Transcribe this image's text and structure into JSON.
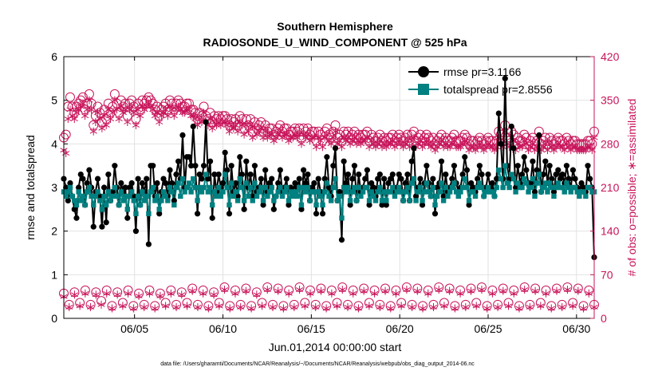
{
  "chart_data": {
    "type": "line",
    "title": "Southern Hemisphere",
    "subtitle": "RADIOSONDE_U_WIND_COMPONENT @ 525 hPa",
    "xlabel": "Jun.01,2014 00:00:00 start",
    "ylabel_left": "rmse and totalspread",
    "ylabel_right": "# of obs: o=possible; ∗=assimilated",
    "footer": "data file: /Users/gharamti/Documents/NCAR/Reanalysis/~/Documents/NCAR/Reanalysis/webpub/obs_diag_output_2014-06.nc",
    "xlim": [
      1,
      31
    ],
    "x_ticks": [
      5,
      10,
      15,
      20,
      25,
      30
    ],
    "x_tick_labels": [
      "06/05",
      "06/10",
      "06/15",
      "06/20",
      "06/25",
      "06/30"
    ],
    "ylim_left": [
      0,
      6
    ],
    "y_ticks_left": [
      "0",
      "1",
      "2",
      "3",
      "4",
      "5",
      "6"
    ],
    "ylim_right": [
      0,
      420
    ],
    "y_ticks_right": [
      "0",
      "70",
      "140",
      "210",
      "280",
      "350",
      "420"
    ],
    "grid": true,
    "legend_position": "top-right",
    "colors": {
      "rmse": "#000000",
      "totalspread": "#008080",
      "obs": "#c8145a"
    },
    "series": [
      {
        "name": "rmse pr=3.1166",
        "values": [
          3.2,
          3.0,
          2.7,
          3.1,
          2.8,
          2.5,
          2.3,
          3.0,
          3.3,
          3.2,
          2.6,
          3.1,
          3.4,
          3.0,
          2.1,
          2.9,
          3.2,
          2.8,
          2.1,
          3.0,
          2.2,
          3.3,
          2.7,
          2.9,
          3.5,
          3.0,
          2.6,
          3.1,
          2.9,
          3.0,
          2.3,
          3.0,
          3.1,
          2.8,
          2.0,
          3.2,
          2.6,
          3.1,
          2.9,
          3.2,
          1.7,
          3.5,
          3.5,
          2.8,
          3.1,
          2.4,
          2.9,
          3.2,
          3.1,
          2.8,
          3.4,
          3.1,
          2.7,
          3.3,
          3.6,
          3.2,
          4.2,
          3.0,
          3.7,
          3.7,
          3.5,
          4.4,
          3.5,
          2.4,
          3.3,
          3.2,
          3.5,
          4.5,
          3.2,
          3.6,
          2.3,
          3.3,
          2.9,
          3.3,
          3.0,
          3.1,
          3.8,
          3.4,
          2.4,
          3.5,
          2.9,
          3.1,
          2.8,
          3.7,
          3.3,
          2.5,
          3.6,
          3.0,
          3.3,
          2.8,
          3.5,
          2.9,
          3.0,
          3.2,
          2.6,
          3.4,
          2.9,
          3.1,
          3.2,
          2.5,
          2.8,
          3.1,
          3.4,
          2.9,
          3.0,
          3.2,
          2.6,
          3.0,
          2.9,
          3.1,
          3.0,
          3.2,
          2.5,
          3.4,
          3.1,
          3.3,
          2.7,
          3.0,
          3.1,
          2.4,
          3.2,
          2.9,
          2.4,
          3.2,
          3.7,
          3.0,
          2.8,
          3.5,
          3.9,
          2.7,
          2.9,
          1.8,
          3.6,
          3.1,
          3.3,
          2.6,
          3.2,
          3.5,
          2.7,
          3.3,
          2.9,
          3.0,
          3.2,
          3.4,
          2.6,
          3.1,
          3.0,
          2.8,
          3.2,
          3.3,
          2.6,
          3.2,
          2.6,
          3.1,
          3.2,
          3.3,
          2.9,
          3.0,
          3.3,
          3.2,
          2.7,
          3.1,
          3.3,
          2.7,
          3.6,
          3.9,
          2.8,
          3.0,
          3.2,
          2.6,
          3.1,
          3.5,
          3.1,
          2.8,
          3.2,
          2.4,
          3.0,
          3.1,
          3.6,
          2.8,
          3.3,
          2.9,
          3.0,
          3.2,
          3.5,
          3.1,
          2.9,
          3.0,
          3.3,
          3.7,
          3.4,
          2.6,
          3.1,
          3.0,
          2.9,
          3.2,
          3.5,
          3.3,
          2.8,
          3.0,
          3.3,
          3.0,
          3.1,
          2.8,
          3.2,
          4.7,
          4.0,
          3.2,
          5.5,
          3.5,
          3.2,
          4.4,
          3.9,
          3.0,
          3.5,
          3.1,
          3.3,
          3.7,
          3.4,
          3.1,
          3.1,
          3.6,
          2.9,
          3.4,
          4.2,
          2.9,
          3.3,
          3.6,
          3.1,
          3.5,
          3.2,
          2.9,
          3.3,
          3.4,
          3.2,
          3.3,
          3.1,
          3.5,
          3.2,
          3.0,
          3.4,
          3.2,
          3.0,
          2.9,
          3.1,
          3.0,
          2.9,
          3.5,
          3.2,
          3.0,
          1.4
        ]
      },
      {
        "name": "totalspread pr=2.8556",
        "values": [
          2.9,
          2.8,
          2.9,
          3.0,
          2.8,
          2.7,
          2.6,
          2.9,
          2.7,
          2.8,
          2.6,
          2.9,
          3.0,
          2.8,
          2.6,
          2.8,
          2.9,
          2.7,
          2.5,
          2.8,
          2.6,
          2.9,
          2.7,
          2.8,
          3.0,
          2.8,
          2.6,
          2.9,
          2.7,
          2.8,
          2.5,
          2.8,
          2.9,
          2.7,
          2.4,
          2.8,
          2.6,
          2.9,
          2.7,
          2.8,
          2.4,
          2.9,
          3.0,
          2.7,
          2.8,
          2.5,
          2.7,
          2.9,
          2.8,
          2.7,
          3.0,
          2.9,
          2.6,
          3.0,
          3.1,
          2.8,
          3.2,
          2.9,
          3.0,
          3.1,
          2.9,
          3.2,
          3.0,
          2.7,
          3.0,
          2.9,
          3.0,
          3.3,
          2.9,
          3.0,
          2.6,
          2.9,
          2.8,
          3.0,
          2.8,
          2.9,
          3.3,
          3.0,
          2.6,
          3.1,
          2.8,
          2.9,
          2.7,
          3.2,
          3.0,
          2.7,
          3.1,
          2.8,
          3.0,
          2.7,
          3.1,
          2.8,
          2.9,
          3.0,
          2.7,
          3.0,
          2.8,
          2.9,
          3.0,
          2.7,
          2.8,
          2.9,
          3.0,
          2.8,
          2.9,
          3.0,
          2.7,
          2.9,
          2.8,
          2.9,
          2.8,
          3.0,
          2.6,
          3.0,
          2.9,
          3.0,
          2.7,
          2.9,
          2.9,
          2.6,
          2.9,
          2.8,
          2.6,
          2.9,
          3.1,
          2.8,
          2.7,
          3.0,
          3.2,
          2.7,
          2.8,
          2.3,
          3.0,
          2.9,
          3.0,
          2.7,
          2.9,
          3.0,
          2.7,
          3.0,
          2.8,
          2.9,
          3.0,
          3.0,
          2.7,
          2.9,
          2.8,
          2.7,
          2.9,
          3.0,
          2.7,
          2.9,
          2.7,
          2.9,
          2.9,
          3.0,
          2.8,
          2.9,
          3.0,
          2.9,
          2.7,
          2.9,
          3.0,
          2.7,
          3.1,
          3.2,
          2.7,
          2.9,
          3.0,
          2.7,
          2.9,
          3.1,
          2.9,
          2.8,
          3.0,
          2.6,
          2.8,
          2.9,
          3.1,
          2.7,
          3.0,
          2.8,
          2.9,
          3.0,
          3.1,
          2.9,
          2.8,
          2.9,
          3.0,
          3.2,
          3.0,
          2.7,
          2.9,
          2.9,
          2.8,
          3.0,
          3.1,
          3.0,
          2.8,
          2.9,
          3.0,
          2.9,
          2.9,
          2.8,
          3.0,
          3.4,
          3.2,
          3.0,
          3.5,
          3.1,
          3.0,
          3.3,
          3.2,
          2.9,
          3.1,
          3.0,
          3.0,
          3.2,
          3.1,
          2.9,
          3.0,
          3.2,
          2.8,
          3.1,
          3.3,
          2.9,
          3.0,
          3.1,
          2.9,
          3.1,
          3.0,
          2.8,
          3.0,
          3.1,
          3.0,
          3.0,
          2.9,
          3.1,
          3.0,
          2.9,
          3.0,
          3.0,
          2.9,
          2.8,
          2.9,
          2.9,
          2.8,
          3.0,
          3.0,
          2.9,
          2.9
        ]
      }
    ],
    "obs_high": {
      "possible": [
        290,
        295,
        340,
        355,
        340,
        330,
        340,
        345,
        350,
        355,
        335,
        345,
        360,
        345,
        310,
        325,
        340,
        330,
        315,
        335,
        320,
        345,
        330,
        340,
        360,
        345,
        330,
        350,
        340,
        345,
        325,
        345,
        350,
        340,
        320,
        345,
        335,
        350,
        345,
        350,
        355,
        350,
        345,
        335,
        340,
        325,
        335,
        340,
        345,
        335,
        350,
        345,
        335,
        345,
        350,
        345,
        340,
        340,
        345,
        345,
        335,
        335,
        330,
        320,
        330,
        325,
        340,
        325,
        320,
        330,
        315,
        325,
        320,
        325,
        320,
        325,
        325,
        320,
        310,
        320,
        315,
        320,
        310,
        325,
        320,
        305,
        320,
        310,
        320,
        300,
        315,
        305,
        310,
        315,
        300,
        310,
        300,
        305,
        305,
        295,
        300,
        305,
        310,
        300,
        305,
        305,
        295,
        300,
        300,
        305,
        300,
        305,
        290,
        305,
        300,
        305,
        295,
        300,
        300,
        285,
        300,
        295,
        285,
        300,
        305,
        295,
        290,
        300,
        310,
        290,
        295,
        285,
        300,
        295,
        300,
        290,
        295,
        300,
        290,
        295,
        290,
        295,
        295,
        300,
        285,
        295,
        290,
        285,
        290,
        295,
        285,
        290,
        285,
        290,
        290,
        295,
        285,
        290,
        295,
        290,
        285,
        290,
        295,
        285,
        295,
        300,
        285,
        290,
        295,
        285,
        290,
        295,
        290,
        285,
        290,
        280,
        285,
        290,
        295,
        285,
        290,
        285,
        285,
        290,
        295,
        285,
        285,
        285,
        290,
        295,
        290,
        280,
        285,
        285,
        280,
        285,
        290,
        285,
        280,
        285,
        290,
        285,
        285,
        280,
        285,
        300,
        295,
        285,
        310,
        290,
        285,
        300,
        295,
        280,
        290,
        285,
        285,
        295,
        290,
        280,
        285,
        290,
        280,
        285,
        300,
        280,
        285,
        290,
        280,
        290,
        285,
        280,
        285,
        290,
        285,
        285,
        280,
        290,
        285,
        280,
        285,
        285,
        280,
        280,
        280,
        280,
        280,
        285,
        285,
        280,
        300
      ],
      "assimilated": [
        270,
        265,
        320,
        335,
        325,
        320,
        330,
        335,
        340,
        345,
        325,
        335,
        350,
        335,
        300,
        315,
        330,
        320,
        305,
        325,
        310,
        335,
        320,
        330,
        350,
        335,
        320,
        340,
        330,
        335,
        315,
        335,
        340,
        330,
        310,
        335,
        325,
        340,
        335,
        340,
        345,
        340,
        335,
        325,
        330,
        315,
        325,
        330,
        335,
        325,
        340,
        335,
        325,
        335,
        340,
        335,
        330,
        330,
        335,
        335,
        325,
        325,
        320,
        310,
        320,
        315,
        330,
        315,
        310,
        320,
        305,
        315,
        310,
        315,
        310,
        315,
        315,
        310,
        300,
        310,
        305,
        310,
        300,
        315,
        310,
        295,
        310,
        300,
        310,
        290,
        305,
        295,
        300,
        305,
        290,
        300,
        290,
        295,
        295,
        285,
        290,
        295,
        300,
        290,
        295,
        295,
        285,
        290,
        290,
        295,
        290,
        295,
        280,
        295,
        290,
        295,
        285,
        290,
        290,
        275,
        290,
        285,
        275,
        290,
        295,
        285,
        280,
        290,
        300,
        280,
        285,
        275,
        290,
        285,
        290,
        280,
        285,
        290,
        280,
        285,
        280,
        285,
        285,
        290,
        275,
        285,
        280,
        275,
        280,
        285,
        275,
        280,
        275,
        280,
        280,
        285,
        275,
        280,
        285,
        280,
        275,
        280,
        285,
        275,
        285,
        290,
        275,
        280,
        285,
        275,
        280,
        285,
        280,
        275,
        280,
        270,
        275,
        280,
        285,
        275,
        280,
        275,
        275,
        280,
        285,
        275,
        275,
        275,
        280,
        285,
        280,
        270,
        275,
        275,
        270,
        275,
        280,
        275,
        270,
        275,
        280,
        275,
        275,
        270,
        275,
        290,
        285,
        275,
        300,
        280,
        275,
        290,
        285,
        270,
        280,
        275,
        275,
        285,
        280,
        270,
        275,
        280,
        270,
        275,
        290,
        270,
        275,
        280,
        270,
        280,
        275,
        270,
        275,
        280,
        275,
        275,
        270,
        280,
        275,
        270,
        275,
        275,
        270,
        270,
        270,
        270,
        270,
        275,
        275,
        270,
        290
      ]
    },
    "obs_low": {
      "possible": [
        40,
        22,
        42,
        25,
        45,
        22,
        42,
        28,
        45,
        20,
        42,
        25,
        45,
        20,
        40,
        22,
        45,
        20,
        40,
        25,
        45,
        22,
        42,
        25,
        48,
        22,
        45,
        20,
        42,
        25,
        50,
        20,
        45,
        22,
        48,
        20,
        42,
        25,
        50,
        22,
        48,
        20,
        45,
        22,
        50,
        25,
        45,
        22,
        48,
        20,
        45,
        25,
        50,
        22,
        45,
        20,
        48,
        25,
        45,
        22,
        48,
        20,
        45,
        25,
        50,
        22,
        48,
        20,
        45,
        22,
        50,
        25,
        48,
        20,
        45,
        22,
        48,
        25,
        50,
        20,
        45,
        22,
        48,
        25,
        45,
        20,
        50,
        22,
        48,
        25,
        45,
        20,
        48,
        22,
        50,
        25,
        48,
        20,
        45,
        22
      ],
      "assimilated": [
        35,
        18,
        38,
        20,
        40,
        18,
        38,
        22,
        40,
        16,
        38,
        20,
        40,
        16,
        36,
        18,
        40,
        16,
        36,
        20,
        40,
        18,
        38,
        20,
        44,
        18,
        40,
        16,
        38,
        20,
        46,
        16,
        40,
        18,
        44,
        16,
        38,
        20,
        46,
        18,
        44,
        16,
        40,
        18,
        46,
        20,
        40,
        18,
        44,
        16,
        40,
        20,
        46,
        18,
        40,
        16,
        44,
        20,
        40,
        18,
        44,
        16,
        40,
        20,
        46,
        18,
        44,
        16,
        40,
        18,
        46,
        20,
        44,
        16,
        40,
        18,
        44,
        20,
        46,
        16,
        40,
        18,
        44,
        20,
        40,
        16,
        46,
        18,
        44,
        20,
        40,
        16,
        44,
        18,
        46,
        20,
        44,
        16,
        40,
        18
      ]
    }
  }
}
